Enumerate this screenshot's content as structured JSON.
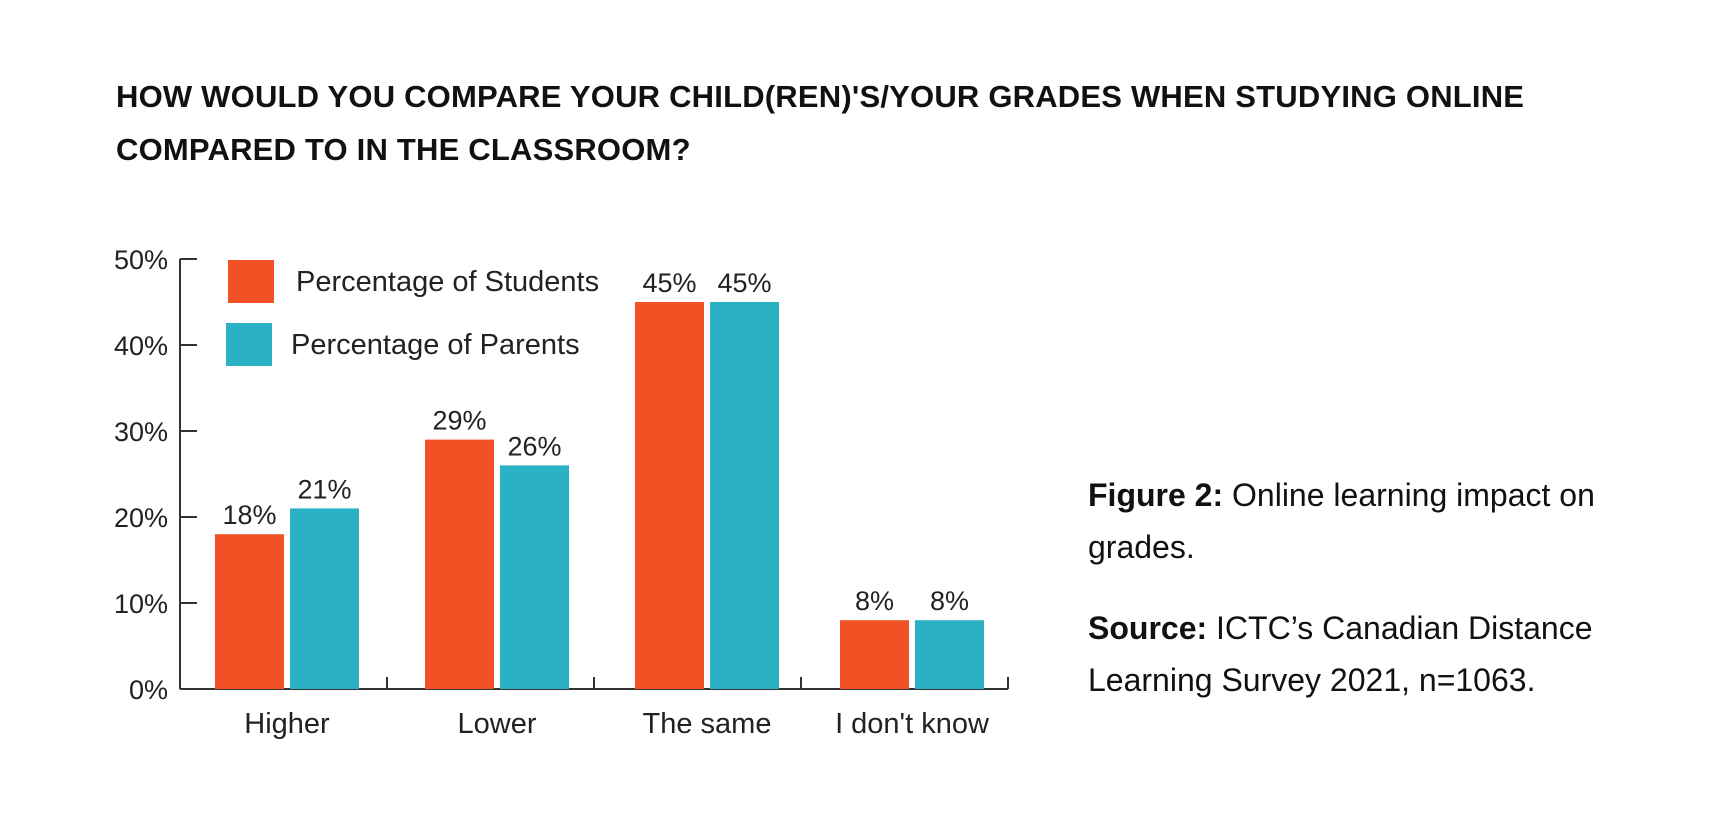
{
  "title_lines": [
    "HOW WOULD YOU COMPARE YOUR CHILD(REN)'S/YOUR GRADES WHEN STUDYING ONLINE",
    "COMPARED TO IN THE CLASSROOM?"
  ],
  "caption": {
    "figure_label": "Figure 2:",
    "figure_line1": " Online learning impact on",
    "figure_line2": "grades.",
    "source_label": "Source:",
    "source_line1": " ICTC’s Canadian Distance",
    "source_line2": "Learning Survey 2021, n=1063."
  },
  "chart_data": {
    "type": "bar",
    "title": "HOW WOULD YOU COMPARE YOUR CHILD(REN)'S/YOUR GRADES WHEN STUDYING ONLINE COMPARED TO IN THE CLASSROOM?",
    "categories": [
      "Higher",
      "Lower",
      "The same",
      "I don't know"
    ],
    "series": [
      {
        "name": "Percentage of Students",
        "color": "#F05125",
        "values": [
          18,
          29,
          45,
          8
        ],
        "labels": [
          "18%",
          "29%",
          "45%",
          "8%"
        ]
      },
      {
        "name": "Percentage of Parents",
        "color": "#2AB1C4",
        "values": [
          21,
          26,
          45,
          8
        ],
        "labels": [
          "21%",
          "26%",
          "45%",
          "8%"
        ]
      }
    ],
    "yticks": [
      0,
      10,
      20,
      30,
      40,
      50
    ],
    "ytick_labels": [
      "0%",
      "10%",
      "20%",
      "30%",
      "40%",
      "50%"
    ],
    "ylim": [
      0,
      50
    ],
    "xlabel": "",
    "ylabel": "",
    "grid": false,
    "legend_position": "top-left"
  }
}
